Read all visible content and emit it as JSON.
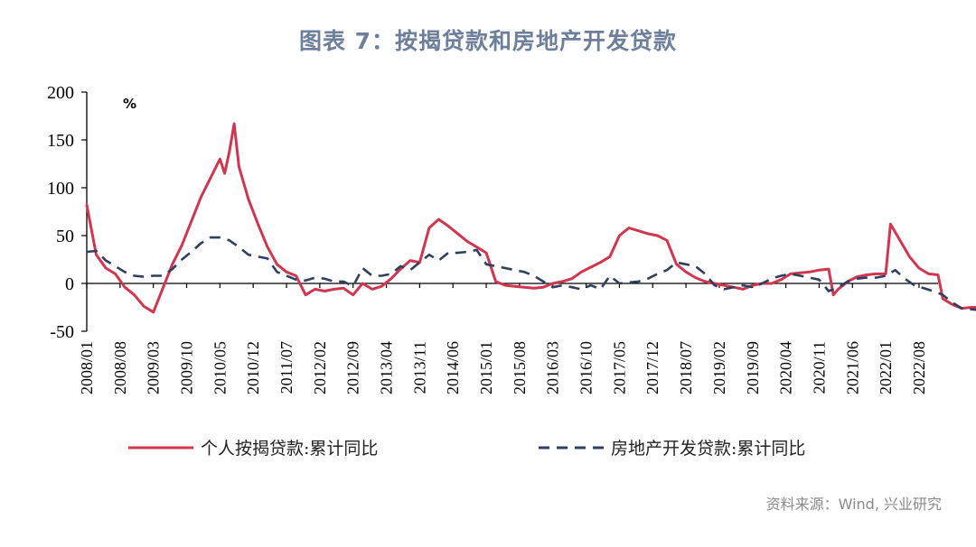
{
  "title": "图表 7：按揭贷款和房地产开发贷款",
  "source": "资料来源：Wind, 兴业研究",
  "chart_data": {
    "type": "line",
    "unit_label": "%",
    "ylim": [
      -50,
      200
    ],
    "yticks": [
      -50,
      0,
      50,
      100,
      150,
      200
    ],
    "x_tick_labels": [
      "2008/01",
      "2008/08",
      "2009/03",
      "2009/10",
      "2010/05",
      "2010/12",
      "2011/07",
      "2012/02",
      "2012/09",
      "2013/04",
      "2013/11",
      "2014/06",
      "2015/01",
      "2015/08",
      "2016/03",
      "2016/10",
      "2017/05",
      "2017/12",
      "2018/07",
      "2019/02",
      "2019/09",
      "2020/04",
      "2020/11",
      "2021/06",
      "2022/01",
      "2022/08"
    ],
    "x_start": "2008/01",
    "x_end": "2022/12",
    "grid": false,
    "legend_position": "bottom",
    "series": [
      {
        "name": "个人按揭贷款:累计同比",
        "color": "#d0364f",
        "style": "solid",
        "points": [
          [
            "2008/01",
            82
          ],
          [
            "2008/03",
            30
          ],
          [
            "2008/05",
            16
          ],
          [
            "2008/07",
            10
          ],
          [
            "2008/09",
            -4
          ],
          [
            "2008/11",
            -12
          ],
          [
            "2009/01",
            -24
          ],
          [
            "2009/03",
            -30
          ],
          [
            "2009/05",
            -5
          ],
          [
            "2009/07",
            20
          ],
          [
            "2009/09",
            40
          ],
          [
            "2009/11",
            65
          ],
          [
            "2010/01",
            90
          ],
          [
            "2010/03",
            110
          ],
          [
            "2010/05",
            130
          ],
          [
            "2010/06",
            115
          ],
          [
            "2010/07",
            138
          ],
          [
            "2010/08",
            167
          ],
          [
            "2010/09",
            122
          ],
          [
            "2010/11",
            88
          ],
          [
            "2011/01",
            62
          ],
          [
            "2011/03",
            38
          ],
          [
            "2011/05",
            20
          ],
          [
            "2011/07",
            12
          ],
          [
            "2011/09",
            8
          ],
          [
            "2011/11",
            -12
          ],
          [
            "2012/01",
            -6
          ],
          [
            "2012/03",
            -8
          ],
          [
            "2012/05",
            -6
          ],
          [
            "2012/07",
            -5
          ],
          [
            "2012/09",
            -12
          ],
          [
            "2012/11",
            0
          ],
          [
            "2013/01",
            -6
          ],
          [
            "2013/03",
            -3
          ],
          [
            "2013/05",
            5
          ],
          [
            "2013/07",
            15
          ],
          [
            "2013/09",
            24
          ],
          [
            "2013/11",
            22
          ],
          [
            "2014/01",
            58
          ],
          [
            "2014/03",
            67
          ],
          [
            "2014/05",
            60
          ],
          [
            "2014/07",
            52
          ],
          [
            "2014/09",
            44
          ],
          [
            "2014/11",
            38
          ],
          [
            "2015/01",
            32
          ],
          [
            "2015/03",
            2
          ],
          [
            "2015/05",
            -2
          ],
          [
            "2015/07",
            -3
          ],
          [
            "2015/09",
            -4
          ],
          [
            "2015/11",
            -5
          ],
          [
            "2016/01",
            -4
          ],
          [
            "2016/03",
            0
          ],
          [
            "2016/05",
            2
          ],
          [
            "2016/07",
            5
          ],
          [
            "2016/09",
            12
          ],
          [
            "2016/11",
            17
          ],
          [
            "2017/01",
            22
          ],
          [
            "2017/03",
            28
          ],
          [
            "2017/05",
            50
          ],
          [
            "2017/07",
            58
          ],
          [
            "2017/09",
            55
          ],
          [
            "2017/11",
            52
          ],
          [
            "2018/01",
            50
          ],
          [
            "2018/03",
            45
          ],
          [
            "2018/05",
            20
          ],
          [
            "2018/07",
            12
          ],
          [
            "2018/09",
            6
          ],
          [
            "2018/11",
            2
          ],
          [
            "2019/01",
            0
          ],
          [
            "2019/03",
            -2
          ],
          [
            "2019/05",
            -4
          ],
          [
            "2019/07",
            -6
          ],
          [
            "2019/09",
            -2
          ],
          [
            "2019/11",
            0
          ],
          [
            "2020/01",
            0
          ],
          [
            "2020/03",
            4
          ],
          [
            "2020/05",
            10
          ],
          [
            "2020/07",
            11
          ],
          [
            "2020/09",
            12
          ],
          [
            "2020/11",
            14
          ],
          [
            "2021/01",
            15
          ],
          [
            "2021/02",
            -12
          ],
          [
            "2021/03",
            -6
          ],
          [
            "2021/05",
            2
          ],
          [
            "2021/07",
            7
          ],
          [
            "2021/09",
            9
          ],
          [
            "2021/11",
            10
          ],
          [
            "2022/01",
            10
          ],
          [
            "2022/02",
            62
          ],
          [
            "2022/04",
            45
          ],
          [
            "2022/06",
            28
          ],
          [
            "2022/08",
            16
          ],
          [
            "2022/10",
            10
          ],
          [
            "2022/12",
            9
          ],
          [
            "2023/01",
            -16
          ],
          [
            "2023/03",
            -22
          ],
          [
            "2023/05",
            -26
          ],
          [
            "2023/07",
            -25
          ],
          [
            "2023/09",
            -25
          ],
          [
            "2023/11",
            -26
          ]
        ]
      },
      {
        "name": "房地产开发贷款:累计同比",
        "color": "#2f3f5e",
        "style": "dashed",
        "points": [
          [
            "2008/01",
            33
          ],
          [
            "2008/03",
            34
          ],
          [
            "2008/05",
            24
          ],
          [
            "2008/07",
            18
          ],
          [
            "2008/09",
            12
          ],
          [
            "2008/11",
            8
          ],
          [
            "2009/01",
            7
          ],
          [
            "2009/03",
            8
          ],
          [
            "2009/05",
            8
          ],
          [
            "2009/07",
            15
          ],
          [
            "2009/09",
            25
          ],
          [
            "2009/11",
            33
          ],
          [
            "2010/01",
            42
          ],
          [
            "2010/03",
            48
          ],
          [
            "2010/05",
            48
          ],
          [
            "2010/07",
            45
          ],
          [
            "2010/09",
            38
          ],
          [
            "2010/11",
            30
          ],
          [
            "2011/01",
            28
          ],
          [
            "2011/03",
            26
          ],
          [
            "2011/05",
            12
          ],
          [
            "2011/07",
            8
          ],
          [
            "2011/09",
            4
          ],
          [
            "2011/11",
            3
          ],
          [
            "2012/01",
            6
          ],
          [
            "2012/03",
            5
          ],
          [
            "2012/05",
            2
          ],
          [
            "2012/07",
            2
          ],
          [
            "2012/09",
            -3
          ],
          [
            "2012/11",
            16
          ],
          [
            "2013/01",
            8
          ],
          [
            "2013/03",
            8
          ],
          [
            "2013/05",
            10
          ],
          [
            "2013/07",
            18
          ],
          [
            "2013/09",
            14
          ],
          [
            "2013/11",
            22
          ],
          [
            "2014/01",
            30
          ],
          [
            "2014/03",
            24
          ],
          [
            "2014/05",
            32
          ],
          [
            "2014/07",
            32
          ],
          [
            "2014/09",
            33
          ],
          [
            "2014/11",
            35
          ],
          [
            "2015/01",
            20
          ],
          [
            "2015/03",
            18
          ],
          [
            "2015/05",
            16
          ],
          [
            "2015/07",
            14
          ],
          [
            "2015/09",
            12
          ],
          [
            "2015/11",
            8
          ],
          [
            "2016/01",
            2
          ],
          [
            "2016/03",
            -4
          ],
          [
            "2016/05",
            -2
          ],
          [
            "2016/07",
            -4
          ],
          [
            "2016/09",
            -6
          ],
          [
            "2016/11",
            -2
          ],
          [
            "2017/01",
            -6
          ],
          [
            "2017/03",
            8
          ],
          [
            "2017/05",
            0
          ],
          [
            "2017/07",
            1
          ],
          [
            "2017/09",
            2
          ],
          [
            "2017/11",
            5
          ],
          [
            "2018/01",
            10
          ],
          [
            "2018/03",
            14
          ],
          [
            "2018/05",
            22
          ],
          [
            "2018/07",
            20
          ],
          [
            "2018/09",
            18
          ],
          [
            "2018/11",
            10
          ],
          [
            "2019/01",
            -2
          ],
          [
            "2019/03",
            -6
          ],
          [
            "2019/05",
            -4
          ],
          [
            "2019/07",
            -2
          ],
          [
            "2019/09",
            -4
          ],
          [
            "2019/11",
            0
          ],
          [
            "2020/01",
            5
          ],
          [
            "2020/03",
            8
          ],
          [
            "2020/05",
            10
          ],
          [
            "2020/07",
            8
          ],
          [
            "2020/09",
            6
          ],
          [
            "2020/11",
            4
          ],
          [
            "2021/01",
            -8
          ],
          [
            "2021/03",
            -4
          ],
          [
            "2021/05",
            2
          ],
          [
            "2021/07",
            5
          ],
          [
            "2021/09",
            6
          ],
          [
            "2021/11",
            6
          ],
          [
            "2022/01",
            8
          ],
          [
            "2022/03",
            14
          ],
          [
            "2022/05",
            5
          ],
          [
            "2022/07",
            -2
          ],
          [
            "2022/09",
            -5
          ],
          [
            "2022/11",
            -8
          ],
          [
            "2023/01",
            -12
          ],
          [
            "2023/03",
            -20
          ],
          [
            "2023/05",
            -26
          ],
          [
            "2023/07",
            -27
          ],
          [
            "2023/09",
            -28
          ],
          [
            "2023/11",
            -26
          ]
        ]
      }
    ]
  }
}
